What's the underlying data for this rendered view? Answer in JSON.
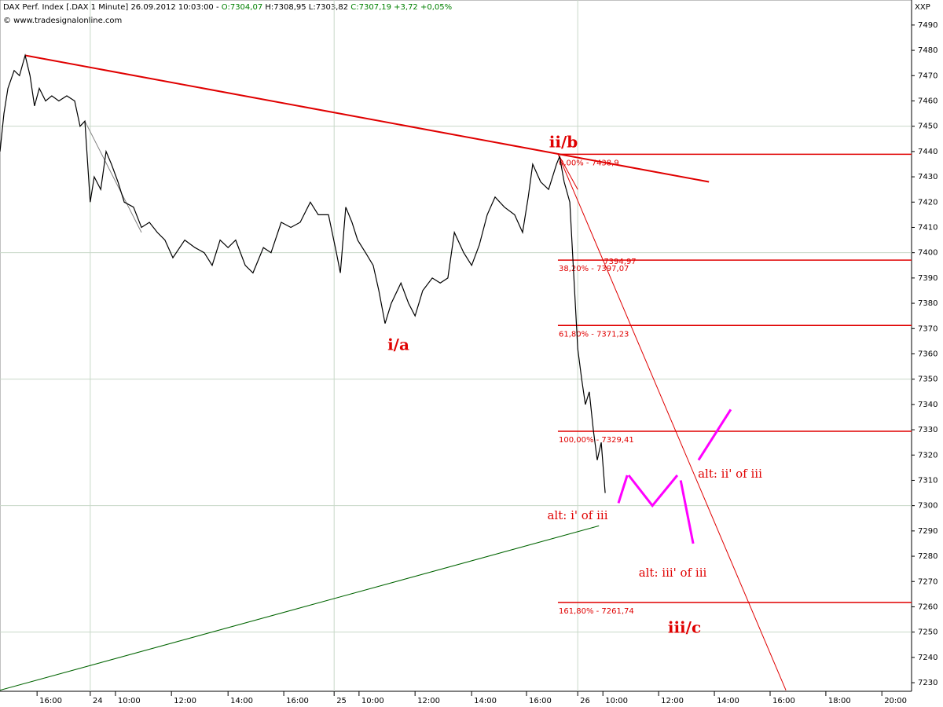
{
  "chart_data": {
    "type": "line",
    "header": [
      "DAX Perf. Index [.DAX 1 Minute] 26.09.2012 10:03:00 - ",
      "O:7304,07",
      " H:7308,95 L:7303,82 ",
      "C:7307,19 +3,72 +0,05%"
    ],
    "header_colors": [
      "#000000",
      "#008000",
      "#000000",
      "#008000"
    ],
    "source": "© www.tradesignalonline.com",
    "corner": "XXP",
    "xlim": [
      0,
      32.22
    ],
    "ylim": [
      7226.6,
      7499.9
    ],
    "xticks": [
      {
        "value": 1.31,
        "label": "16:00"
      },
      {
        "value": 3.19,
        "label": "24"
      },
      {
        "value": 4.08,
        "label": "10:00"
      },
      {
        "value": 6.06,
        "label": "12:00"
      },
      {
        "value": 8.06,
        "label": "14:00"
      },
      {
        "value": 10.03,
        "label": "16:00"
      },
      {
        "value": 11.81,
        "label": "25"
      },
      {
        "value": 12.69,
        "label": "10:00"
      },
      {
        "value": 14.67,
        "label": "12:00"
      },
      {
        "value": 16.67,
        "label": "14:00"
      },
      {
        "value": 18.61,
        "label": "16:00"
      },
      {
        "value": 20.42,
        "label": "26"
      },
      {
        "value": 21.31,
        "label": "10:00"
      },
      {
        "value": 23.28,
        "label": "12:00"
      },
      {
        "value": 25.25,
        "label": "14:00"
      },
      {
        "value": 27.22,
        "label": "16:00"
      },
      {
        "value": 29.19,
        "label": "18:00"
      },
      {
        "value": 31.17,
        "label": "20:00"
      }
    ],
    "yticks": [
      7230,
      7240,
      7250,
      7260,
      7270,
      7280,
      7290,
      7300,
      7310,
      7320,
      7330,
      7340,
      7350,
      7360,
      7370,
      7380,
      7390,
      7400,
      7410,
      7420,
      7430,
      7440,
      7450,
      7460,
      7470,
      7480,
      7490
    ],
    "xgrid": [
      3.19,
      11.81,
      20.42
    ],
    "ygrid": [
      7250,
      7300,
      7350,
      7400,
      7450
    ],
    "price": {
      "color": "#000000",
      "x": [
        0,
        0.14,
        0.28,
        0.5,
        0.69,
        0.89,
        1.06,
        1.22,
        1.39,
        1.61,
        1.83,
        2.08,
        2.36,
        2.64,
        2.83,
        3.0,
        3.19,
        3.33,
        3.56,
        3.75,
        3.94,
        4.17,
        4.39,
        4.72,
        5.0,
        5.28,
        5.56,
        5.83,
        6.11,
        6.53,
        6.89,
        7.22,
        7.5,
        7.78,
        8.06,
        8.33,
        8.67,
        8.94,
        9.31,
        9.58,
        9.94,
        10.28,
        10.61,
        10.97,
        11.25,
        11.61,
        11.89,
        12.03,
        12.22,
        12.44,
        12.64,
        12.92,
        13.19,
        13.39,
        13.61,
        13.83,
        14.17,
        14.44,
        14.67,
        14.94,
        15.28,
        15.56,
        15.83,
        16.06,
        16.39,
        16.67,
        16.94,
        17.22,
        17.5,
        17.83,
        18.19,
        18.47,
        18.67,
        18.83,
        19.11,
        19.39,
        19.67,
        19.78,
        19.94,
        20.14,
        20.42,
        20.56,
        20.69,
        20.83,
        20.97,
        21.11,
        21.25,
        21.39
      ],
      "values": [
        7440,
        7455,
        7465,
        7472,
        7470,
        7478,
        7470,
        7458,
        7465,
        7460,
        7462,
        7460,
        7462,
        7460,
        7450,
        7452,
        7420,
        7430,
        7425,
        7440,
        7435,
        7428,
        7420,
        7418,
        7410,
        7412,
        7408,
        7405,
        7398,
        7405,
        7402,
        7400,
        7395,
        7405,
        7402,
        7405,
        7395,
        7392,
        7402,
        7400,
        7412,
        7410,
        7412,
        7420,
        7415,
        7415,
        7400,
        7392,
        7418,
        7412,
        7405,
        7400,
        7395,
        7385,
        7372,
        7380,
        7388,
        7380,
        7375,
        7385,
        7390,
        7388,
        7390,
        7408,
        7400,
        7395,
        7403,
        7415,
        7422,
        7418,
        7415,
        7408,
        7422,
        7435,
        7428,
        7425,
        7435,
        7438,
        7428,
        7420,
        7362,
        7350,
        7340,
        7345,
        7330,
        7318,
        7325,
        7305
      ]
    },
    "trendlines": [
      {
        "color": "#e00000",
        "width": 2,
        "x": [
          0.89,
          25.06
        ],
        "values": [
          7478,
          7428
        ]
      },
      {
        "color": "#006400",
        "width": 1,
        "x": [
          0,
          21.17
        ],
        "values": [
          7227,
          7292
        ]
      },
      {
        "color": "#808080",
        "width": 1,
        "x": [
          3.0,
          5.0
        ],
        "values": [
          7452,
          7408
        ]
      },
      {
        "color": "#e00000",
        "width": 1,
        "x": [
          19.72,
          27.78
        ],
        "values": [
          7439,
          7227
        ]
      },
      {
        "color": "#e00000",
        "width": 1,
        "x": [
          19.78,
          20.42
        ],
        "values": [
          7438,
          7425
        ]
      },
      {
        "color": "#ff00ff",
        "width": 3,
        "x": [
          21.86,
          22.17
        ],
        "values": [
          7301,
          7312
        ]
      },
      {
        "color": "#ff00ff",
        "width": 3,
        "x": [
          22.22,
          23.06,
          23.94
        ],
        "values": [
          7312,
          7300,
          7312
        ]
      },
      {
        "color": "#ff00ff",
        "width": 3,
        "x": [
          24.06,
          24.5
        ],
        "values": [
          7310,
          7285
        ]
      },
      {
        "color": "#ff00ff",
        "width": 3,
        "x": [
          24.69,
          25.83
        ],
        "values": [
          7318,
          7338
        ]
      }
    ],
    "fib": {
      "color": "#e00000",
      "x_start": 19.72,
      "levels": [
        {
          "value": 7438.9,
          "label": "0,00% - 7438,9"
        },
        {
          "value": 7397.07,
          "label": "38,20% - 7397,07"
        },
        {
          "value": 7371.23,
          "label": "61,80% - 7371,23"
        },
        {
          "value": 7329.41,
          "label": "100,00% - 7329,41"
        },
        {
          "value": 7261.74,
          "label": "161,80% - 7261,74"
        }
      ]
    },
    "annotations": [
      "ii/b",
      "i/a",
      "iii/c",
      "alt: i' of iii",
      "alt: iii' of iii",
      "alt: ii' of iii",
      "7394,97"
    ]
  }
}
